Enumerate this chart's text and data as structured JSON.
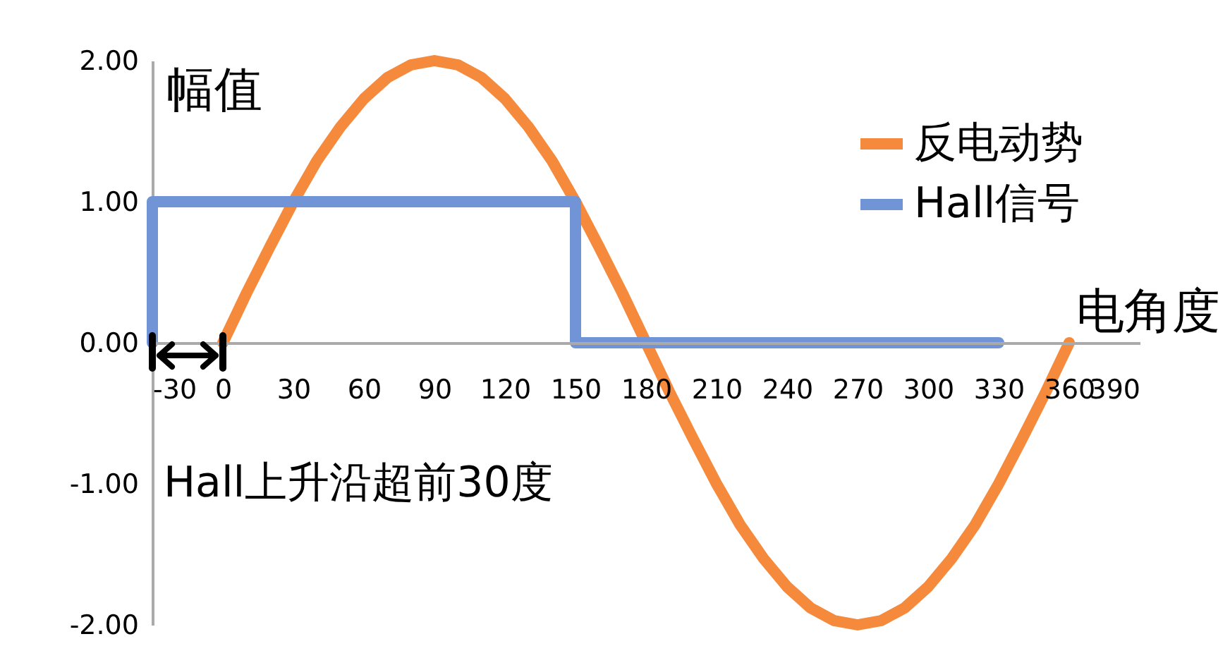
{
  "chart_data": {
    "type": "line",
    "xlabel": "电角度",
    "ylabel": "幅值",
    "annotations": [
      "Hall上升沿超前30度"
    ],
    "xlim": [
      -30,
      390
    ],
    "xticks": [
      -30,
      0,
      30,
      60,
      90,
      120,
      150,
      180,
      210,
      240,
      270,
      300,
      330,
      360,
      390
    ],
    "ylim": [
      -2,
      2
    ],
    "yticks": [
      {
        "value": -2,
        "label": "-2.00"
      },
      {
        "value": -1,
        "label": "-1.00"
      },
      {
        "value": 0,
        "label": "0.00"
      },
      {
        "value": 1,
        "label": "1.00"
      },
      {
        "value": 2,
        "label": "2.00"
      }
    ],
    "legend": "top right",
    "line_style": "solid",
    "marker": "none",
    "series": [
      {
        "name": "反电动势",
        "color": "#f58a3c",
        "x": [
          0,
          10,
          20,
          30,
          40,
          50,
          60,
          70,
          80,
          90,
          100,
          110,
          120,
          130,
          140,
          150,
          160,
          170,
          180,
          190,
          200,
          210,
          220,
          230,
          240,
          250,
          260,
          270,
          280,
          290,
          300,
          310,
          320,
          330,
          340,
          350,
          360
        ],
        "values": [
          0,
          0.35,
          0.68,
          1,
          1.29,
          1.53,
          1.73,
          1.88,
          1.97,
          2,
          1.97,
          1.88,
          1.73,
          1.53,
          1.29,
          1,
          0.68,
          0.35,
          0,
          -0.35,
          -0.68,
          -1,
          -1.29,
          -1.53,
          -1.73,
          -1.88,
          -1.97,
          -2,
          -1.97,
          -1.88,
          -1.73,
          -1.53,
          -1.29,
          -1,
          -0.68,
          -0.35,
          0
        ]
      },
      {
        "name": "Hall信号",
        "color": "#7094d6",
        "x": [
          -30,
          -30,
          150,
          150,
          330
        ],
        "values": [
          0,
          1,
          1,
          0,
          0
        ]
      }
    ]
  }
}
